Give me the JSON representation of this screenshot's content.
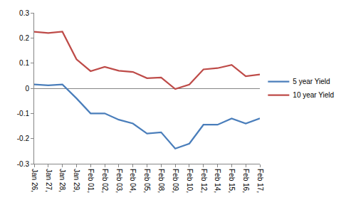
{
  "chart_data": {
    "type": "line",
    "categories": [
      "Jan 26,",
      "Jan 27,",
      "Jan 28,",
      "Jan 29,",
      "Feb 01,",
      "Feb 02,",
      "Feb 03,",
      "Feb 04,",
      "Feb 05,",
      "Feb 08,",
      "Feb 09,",
      "Feb 10,",
      "Feb 12,",
      "Feb 14,",
      "Feb 15,",
      "Feb 16,",
      "Feb 17,"
    ],
    "series": [
      {
        "name": "5 year Yield",
        "color": "#4a7ebb",
        "values": [
          0.015,
          0.012,
          0.015,
          -0.04,
          -0.1,
          -0.1,
          -0.125,
          -0.14,
          -0.18,
          -0.175,
          -0.24,
          -0.22,
          -0.145,
          -0.145,
          -0.12,
          -0.14,
          -0.12
        ]
      },
      {
        "name": "10 year Yield",
        "color": "#be4b48",
        "values": [
          0.225,
          0.22,
          0.225,
          0.115,
          0.068,
          0.085,
          0.07,
          0.065,
          0.04,
          0.043,
          -0.003,
          0.015,
          0.075,
          0.08,
          0.093,
          0.048,
          0.055
        ]
      }
    ],
    "ylim": [
      -0.3,
      0.3
    ],
    "yticks": [
      -0.3,
      -0.2,
      -0.1,
      0,
      0.1,
      0.2,
      0.3
    ],
    "grid": false,
    "legend": "right"
  }
}
